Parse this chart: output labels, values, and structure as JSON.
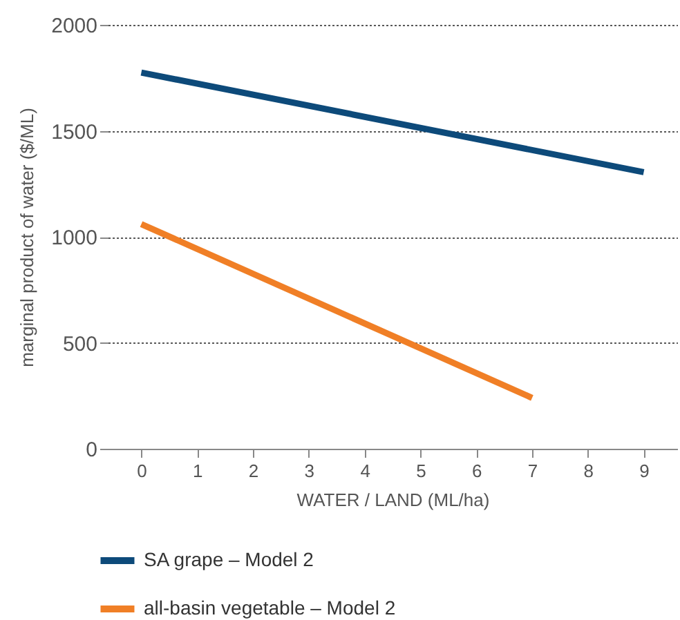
{
  "chart_data": {
    "type": "line",
    "xlabel": "WATER / LAND (ML/ha)",
    "ylabel": "marginal product of water ($/ML)",
    "xlim": [
      -0.6,
      9.6
    ],
    "xticks": [
      0,
      1,
      2,
      3,
      4,
      5,
      6,
      7,
      8,
      9
    ],
    "ylim": [
      0,
      2000
    ],
    "yticks": [
      0,
      500,
      1000,
      1500,
      2000
    ],
    "grid": "y",
    "legend": "bottom",
    "marker": "none",
    "line_style": "solid",
    "series": [
      {
        "name": "SA grape – Model 2",
        "color": "#0d4a7a",
        "x": [
          0,
          9
        ],
        "values": [
          1775,
          1305
        ]
      },
      {
        "name": "all-basin vegetable – Model 2",
        "color": "#f07f26",
        "x": [
          0,
          7
        ],
        "values": [
          1060,
          240
        ]
      }
    ]
  }
}
